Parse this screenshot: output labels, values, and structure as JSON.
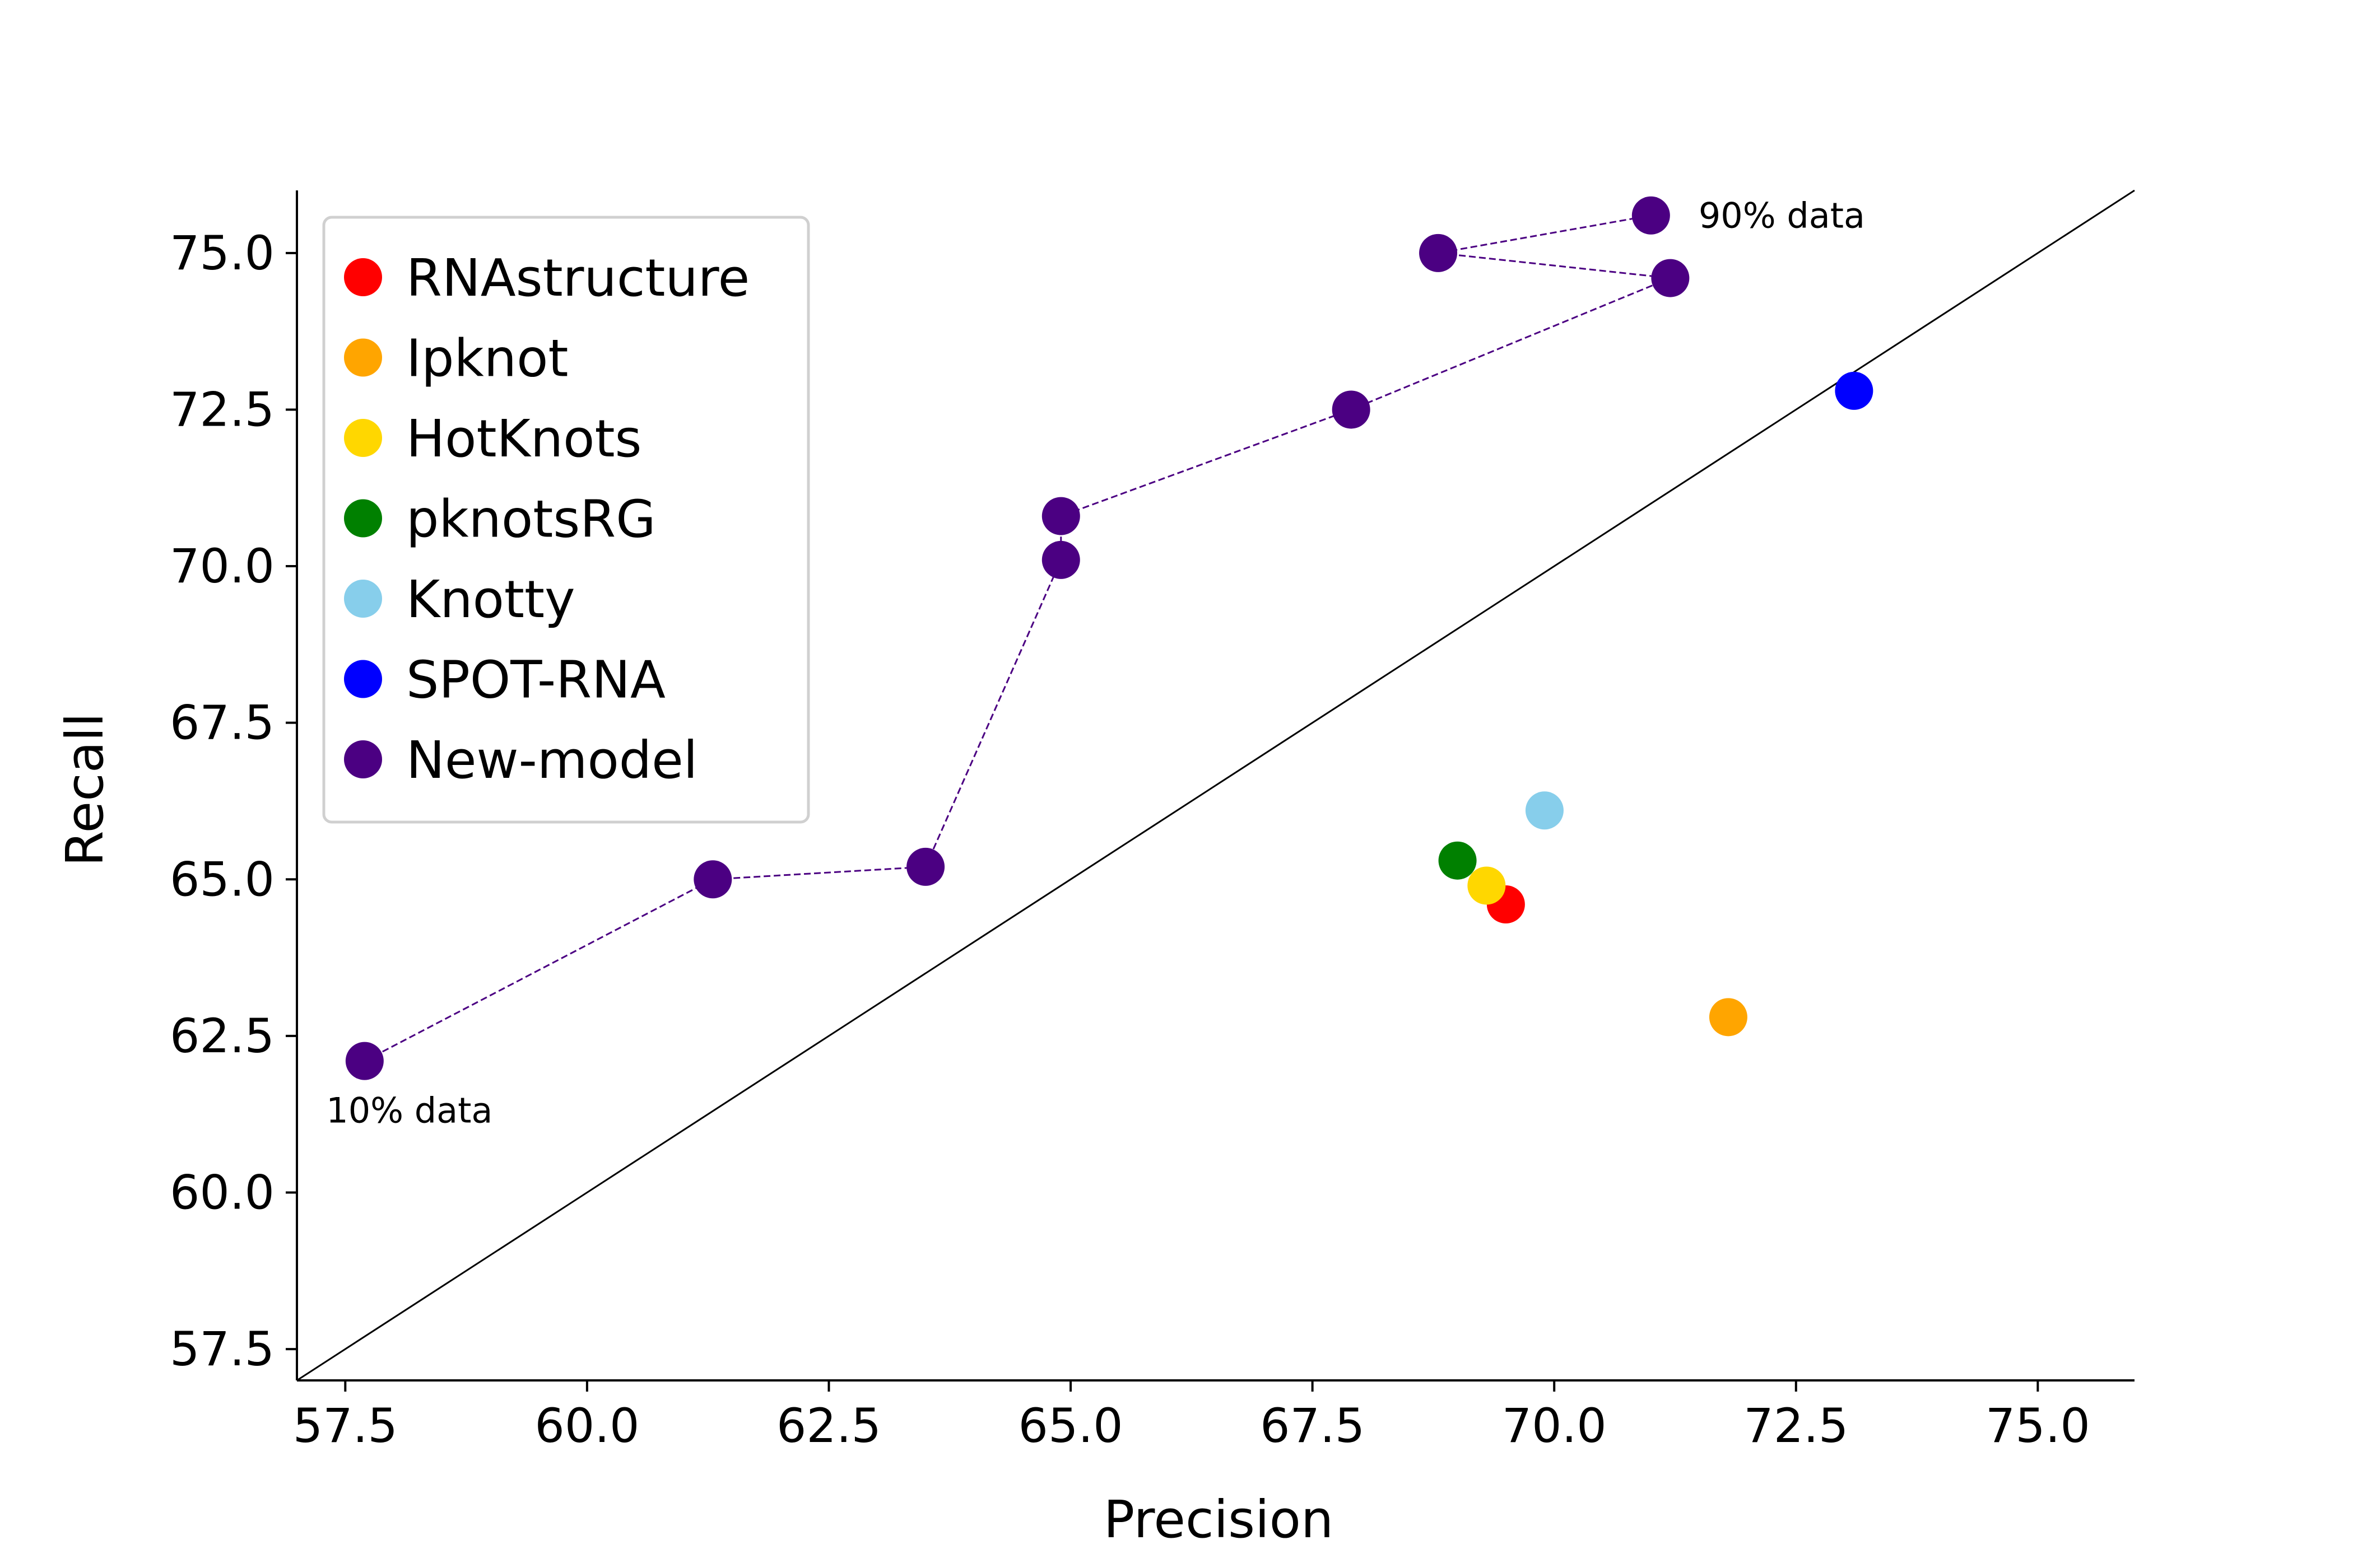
{
  "chart_data": {
    "type": "scatter",
    "title": "",
    "xlabel": "Precision",
    "ylabel": "Recall",
    "xlim": [
      57.0,
      76.0
    ],
    "ylim": [
      57.0,
      76.0
    ],
    "xticks": [
      "57.5",
      "60.0",
      "62.5",
      "65.0",
      "67.5",
      "70.0",
      "72.5",
      "75.0"
    ],
    "yticks": [
      "57.5",
      "60.0",
      "62.5",
      "65.0",
      "67.5",
      "70.0",
      "72.5",
      "75.0"
    ],
    "grid": false,
    "legend_position": "top-left",
    "reference_line": "y = x",
    "series": [
      {
        "name": "RNAstructure",
        "color": "#ff0000",
        "points": [
          {
            "x": 69.5,
            "y": 64.6
          }
        ]
      },
      {
        "name": "Ipknot",
        "color": "#ffa500",
        "points": [
          {
            "x": 71.8,
            "y": 62.8
          }
        ]
      },
      {
        "name": "HotKnots",
        "color": "#ffd700",
        "points": [
          {
            "x": 69.3,
            "y": 64.9
          }
        ]
      },
      {
        "name": "pknotsRG",
        "color": "#008000",
        "points": [
          {
            "x": 69.0,
            "y": 65.3
          }
        ]
      },
      {
        "name": "Knotty",
        "color": "#87ceeb",
        "points": [
          {
            "x": 69.9,
            "y": 66.1
          }
        ]
      },
      {
        "name": "SPOT-RNA",
        "color": "#0000ff",
        "points": [
          {
            "x": 73.1,
            "y": 72.8
          }
        ]
      },
      {
        "name": "New-model",
        "color": "#4b0082",
        "connected": true,
        "points": [
          {
            "x": 57.7,
            "y": 62.1
          },
          {
            "x": 61.3,
            "y": 65.0
          },
          {
            "x": 63.5,
            "y": 65.2
          },
          {
            "x": 64.9,
            "y": 70.1
          },
          {
            "x": 64.9,
            "y": 70.8
          },
          {
            "x": 67.9,
            "y": 72.5
          },
          {
            "x": 71.2,
            "y": 74.6
          },
          {
            "x": 68.8,
            "y": 75.0
          },
          {
            "x": 71.0,
            "y": 75.6
          }
        ]
      }
    ],
    "annotations": [
      {
        "text": "10% data",
        "x": 57.7,
        "y": 62.1
      },
      {
        "text": "90% data",
        "x": 71.0,
        "y": 75.6
      }
    ]
  }
}
